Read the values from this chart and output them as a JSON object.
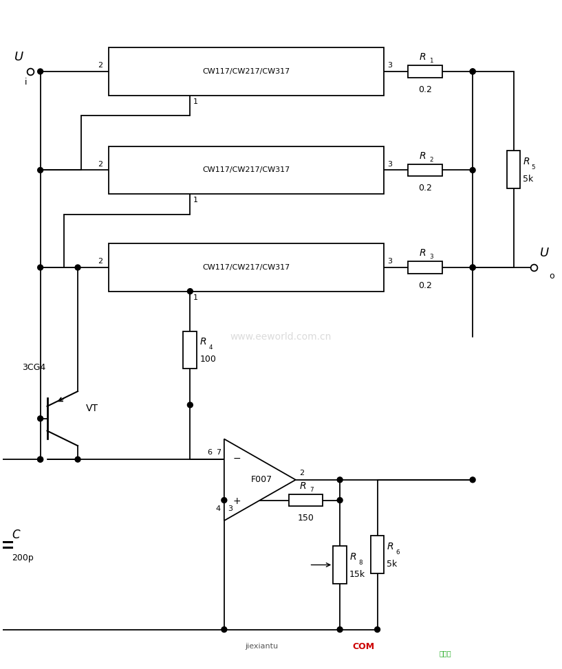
{
  "bg_color": "#ffffff",
  "figsize": [
    8.17,
    9.73
  ],
  "dpi": 100,
  "ic_label": "CW117/CW217/CW317",
  "op_amp_label": "F007",
  "vt_label": "VT",
  "vt_type": "3CG4",
  "R_values": [
    "0.2",
    "0.2",
    "0.2",
    "100",
    "5k",
    "5k",
    "150",
    "15k"
  ],
  "R_subscripts": [
    "1",
    "2",
    "3",
    "4",
    "5",
    "6",
    "7",
    "8"
  ],
  "C_value": "200p",
  "watermark": "www.eeworld.com.cn",
  "footer_left": "jiexiantu",
  "footer_right": "COM"
}
